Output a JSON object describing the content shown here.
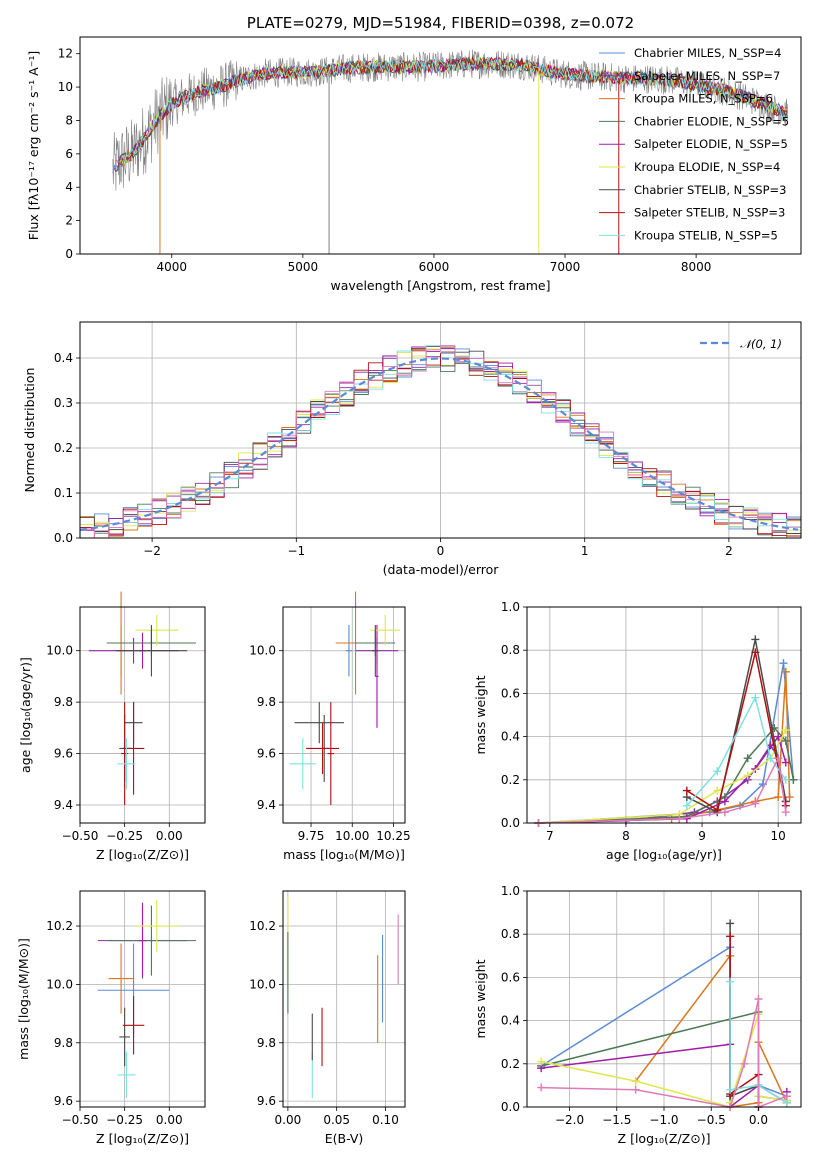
{
  "colors": {
    "chabrier_miles": "#5b8bd6",
    "salpeter_miles": "#8e2ba5",
    "kroupa_miles": "#d9771e",
    "chabrier_elodie": "#4d7a56",
    "salpeter_elodie": "#a11ca8",
    "kroupa_elodie": "#dfe84a",
    "chabrier_stelib": "#4a4a4a",
    "salpeter_stelib": "#b01010",
    "kroupa_stelib": "#7fe0e0",
    "pink": "#e07ab8",
    "data_grey": "#808080",
    "grid": "#b0b0b0"
  },
  "chart_data": [
    {
      "id": "spectrum",
      "type": "line",
      "title": "PLATE=0279, MJD=51984, FIBERID=0398, z=0.072",
      "xlabel": "wavelength [Angstrom, rest frame]",
      "ylabel": "Flux [fλ10⁻¹⁷ erg cm⁻² s⁻¹ A⁻¹]",
      "xlim": [
        3300,
        8800
      ],
      "ylim": [
        0,
        13
      ],
      "xticks": [
        4000,
        5000,
        6000,
        7000,
        8000
      ],
      "yticks": [
        0,
        2,
        4,
        6,
        8,
        10,
        12
      ],
      "grid": false,
      "legend_position": "right",
      "legend": [
        "Chabrier MILES, N_SSP=4",
        "Salpeter MILES, N_SSP=7",
        "Kroupa MILES, N_SSP=6",
        "Chabrier ELODIE, N_SSP=5",
        "Salpeter ELODIE, N_SSP=5",
        "Kroupa ELODIE, N_SSP=4",
        "Chabrier STELIB, N_SSP=3",
        "Salpeter STELIB, N_SSP=3",
        "Kroupa STELIB, N_SSP=5"
      ],
      "continuum": {
        "x": [
          3550,
          3600,
          3700,
          3800,
          3900,
          4000,
          4100,
          4200,
          4300,
          4400,
          4500,
          4700,
          4900,
          5100,
          5300,
          5500,
          5700,
          5900,
          6100,
          6300,
          6500,
          6700,
          6900,
          7100,
          7300,
          7500,
          7700,
          7900,
          8100,
          8300,
          8500,
          8700
        ],
        "y": [
          5.0,
          5.5,
          6.0,
          7.0,
          8.2,
          9.0,
          9.4,
          9.7,
          9.9,
          10.1,
          10.4,
          10.8,
          10.9,
          10.9,
          11.1,
          11.2,
          11.2,
          11.2,
          11.3,
          11.4,
          11.4,
          11.3,
          10.9,
          10.7,
          10.6,
          10.5,
          10.5,
          10.3,
          10.0,
          9.6,
          9.0,
          8.4
        ]
      },
      "drops": [
        {
          "x": 3910,
          "y": 0
        },
        {
          "x": 5200,
          "y": 0
        },
        {
          "x": 6800,
          "y": 0
        },
        {
          "x": 7410,
          "y": 0
        }
      ]
    },
    {
      "id": "residual_hist",
      "type": "histogram",
      "xlabel": "(data-model)/error",
      "ylabel": "Normed distribution",
      "xlim": [
        -2.5,
        2.5
      ],
      "ylim": [
        0,
        0.48
      ],
      "xticks": [
        -2,
        -1,
        0,
        1,
        2
      ],
      "yticks": [
        0.0,
        0.1,
        0.2,
        0.3,
        0.4
      ],
      "grid": true,
      "legend_position": "top-right",
      "legend": [
        "𝒩(0, 1)"
      ],
      "bin_width": 0.1
    },
    {
      "id": "age_vs_Z",
      "type": "errorbar",
      "xlabel": "Z [log₁₀(Z/Z⊙)]",
      "ylabel": "age  [log₁₀(age/yr)]",
      "xlim": [
        -0.5,
        0.2
      ],
      "ylim": [
        9.33,
        10.17
      ],
      "xticks": [
        -0.5,
        -0.25,
        0.0
      ],
      "xtick_labels": [
        "−0.50",
        "−0.25",
        "0.00"
      ],
      "yticks": [
        9.4,
        9.6,
        9.8,
        10.0
      ],
      "grid": true,
      "points": [
        {
          "model": "chabrier_miles",
          "x": -0.27,
          "xerr": 0.02,
          "y": 10.0,
          "yerr": 0.1
        },
        {
          "model": "salpeter_miles",
          "x": -0.2,
          "xerr": 0.25,
          "y": 10.0,
          "yerr": 0.05
        },
        {
          "model": "kroupa_miles",
          "x": -0.27,
          "xerr": 0.07,
          "y": 10.03,
          "yerr": 0.2
        },
        {
          "model": "chabrier_elodie",
          "x": -0.1,
          "xerr": 0.25,
          "y": 10.03,
          "yerr": 0.05
        },
        {
          "model": "salpeter_elodie",
          "x": -0.15,
          "xerr": 0.02,
          "y": 10.0,
          "yerr": 0.07
        },
        {
          "model": "kroupa_elodie",
          "x": -0.07,
          "xerr": 0.12,
          "y": 10.08,
          "yerr": 0.06
        },
        {
          "model": "chabrier_stelib",
          "x": -0.1,
          "xerr": 0.2,
          "y": 10.0,
          "yerr": 0.1
        },
        {
          "model": "chabrier_stelib",
          "x": -0.2,
          "xerr": 0.05,
          "y": 9.72,
          "yerr": 0.08
        },
        {
          "model": "chabrier_stelib",
          "x": -0.25,
          "xerr": 0.03,
          "y": 9.62,
          "yerr": 0.13
        },
        {
          "model": "salpeter_stelib",
          "x": -0.2,
          "xerr": 0.06,
          "y": 9.62,
          "yerr": 0.18
        },
        {
          "model": "salpeter_stelib",
          "x": -0.25,
          "xerr": 0.02,
          "y": 9.6,
          "yerr": 0.2
        },
        {
          "model": "kroupa_stelib",
          "x": -0.24,
          "xerr": 0.05,
          "y": 9.56,
          "yerr": 0.1
        }
      ]
    },
    {
      "id": "age_vs_mass",
      "type": "errorbar",
      "xlabel": "mass [log₁₀(M/M⊙)]",
      "ylabel": "",
      "xlim": [
        9.58,
        10.32
      ],
      "ylim": [
        9.33,
        10.17
      ],
      "xticks": [
        9.75,
        10.0,
        10.25
      ],
      "xtick_labels": [
        "9.75",
        "10.00",
        "10.25"
      ],
      "yticks": [
        9.4,
        9.6,
        9.8,
        10.0
      ],
      "grid": true,
      "points": [
        {
          "model": "chabrier_miles",
          "x": 9.98,
          "xerr": 0.02,
          "y": 10.0,
          "yerr": 0.1
        },
        {
          "model": "salpeter_miles",
          "x": 10.15,
          "xerr": 0.13,
          "y": 10.0,
          "yerr": 0.05
        },
        {
          "model": "kroupa_miles",
          "x": 10.02,
          "xerr": 0.12,
          "y": 10.03,
          "yerr": 0.2
        },
        {
          "model": "chabrier_elodie",
          "x": 10.14,
          "xerr": 0.12,
          "y": 10.03,
          "yerr": 0.05
        },
        {
          "model": "salpeter_elodie",
          "x": 10.15,
          "xerr": 0.01,
          "y": 9.9,
          "yerr": 0.2
        },
        {
          "model": "kroupa_elodie",
          "x": 10.2,
          "xerr": 0.09,
          "y": 10.08,
          "yerr": 0.06
        },
        {
          "model": "chabrier_stelib",
          "x": 10.14,
          "xerr": 0.02,
          "y": 10.0,
          "yerr": 0.1
        },
        {
          "model": "chabrier_stelib",
          "x": 9.8,
          "xerr": 0.15,
          "y": 9.72,
          "yerr": 0.08
        },
        {
          "model": "chabrier_stelib",
          "x": 9.83,
          "xerr": 0.03,
          "y": 9.62,
          "yerr": 0.13
        },
        {
          "model": "salpeter_stelib",
          "x": 9.82,
          "xerr": 0.1,
          "y": 9.62,
          "yerr": 0.1
        },
        {
          "model": "salpeter_stelib",
          "x": 9.87,
          "xerr": 0.02,
          "y": 9.6,
          "yerr": 0.2
        },
        {
          "model": "kroupa_stelib",
          "x": 9.7,
          "xerr": 0.08,
          "y": 9.56,
          "yerr": 0.1
        }
      ]
    },
    {
      "id": "mass_weight_vs_age",
      "type": "line",
      "xlabel": "age  [log₁₀(age/yr)]",
      "ylabel": "mass weight",
      "xlim": [
        6.7,
        10.3
      ],
      "ylim": [
        0,
        1.0
      ],
      "xticks": [
        7,
        8,
        9,
        10
      ],
      "yticks": [
        0.0,
        0.2,
        0.4,
        0.6,
        0.8,
        1.0
      ],
      "grid": true,
      "series": [
        {
          "model": "chabrier_miles",
          "x": [
            6.85,
            9.1,
            9.5,
            9.8,
            10.07,
            10.2
          ],
          "y": [
            0.0,
            0.05,
            0.08,
            0.18,
            0.74,
            0.2
          ]
        },
        {
          "model": "salpeter_miles",
          "x": [
            6.85,
            8.0,
            8.9,
            9.2,
            9.6,
            9.9,
            10.0,
            10.1
          ],
          "y": [
            0.0,
            0.01,
            0.05,
            0.1,
            0.2,
            0.36,
            0.3,
            0.1
          ]
        },
        {
          "model": "kroupa_miles",
          "x": [
            6.85,
            8.6,
            9.2,
            9.7,
            10.0,
            10.1,
            10.15
          ],
          "y": [
            0.0,
            0.02,
            0.06,
            0.1,
            0.12,
            0.7,
            0.12
          ]
        },
        {
          "model": "chabrier_elodie",
          "x": [
            6.85,
            8.8,
            9.3,
            9.6,
            9.95,
            10.1,
            10.2
          ],
          "y": [
            0.0,
            0.03,
            0.12,
            0.3,
            0.44,
            0.38,
            0.2
          ]
        },
        {
          "model": "salpeter_elodie",
          "x": [
            6.85,
            8.8,
            9.3,
            9.7,
            10.0,
            10.1
          ],
          "y": [
            0.0,
            0.02,
            0.1,
            0.25,
            0.4,
            0.28
          ]
        },
        {
          "model": "kroupa_elodie",
          "x": [
            6.85,
            8.7,
            9.2,
            9.6,
            9.9,
            10.1
          ],
          "y": [
            0.0,
            0.04,
            0.15,
            0.22,
            0.3,
            0.43
          ]
        },
        {
          "model": "chabrier_stelib",
          "x": [
            8.8,
            9.2,
            9.7,
            10.1
          ],
          "y": [
            0.12,
            0.05,
            0.85,
            0.1
          ]
        },
        {
          "model": "salpeter_stelib",
          "x": [
            8.8,
            9.2,
            9.7,
            10.1
          ],
          "y": [
            0.15,
            0.06,
            0.79,
            0.08
          ]
        },
        {
          "model": "kroupa_stelib",
          "x": [
            8.8,
            9.2,
            9.7,
            9.9,
            10.1
          ],
          "y": [
            0.08,
            0.24,
            0.58,
            0.3,
            0.2
          ]
        },
        {
          "model": "pink",
          "x": [
            6.85,
            8.7,
            9.3,
            9.7,
            10.0,
            10.1
          ],
          "y": [
            0.0,
            0.02,
            0.05,
            0.09,
            0.3,
            0.05
          ]
        }
      ]
    },
    {
      "id": "mass_vs_Z",
      "type": "errorbar",
      "xlabel": "Z [log₁₀(Z/Z⊙)]",
      "ylabel": "mass [log₁₀(M/M⊙)]",
      "xlim": [
        -0.5,
        0.2
      ],
      "ylim": [
        9.58,
        10.32
      ],
      "xticks": [
        -0.5,
        -0.25,
        0.0
      ],
      "xtick_labels": [
        "−0.50",
        "−0.25",
        "0.00"
      ],
      "yticks": [
        9.6,
        9.8,
        10.0,
        10.2
      ],
      "grid": true,
      "points": [
        {
          "model": "chabrier_miles",
          "x": -0.2,
          "xerr": 0.2,
          "y": 9.98,
          "yerr": 0.16
        },
        {
          "model": "salpeter_miles",
          "x": -0.15,
          "xerr": 0.25,
          "y": 10.15,
          "yerr": 0.13
        },
        {
          "model": "kroupa_miles",
          "x": -0.27,
          "xerr": 0.07,
          "y": 10.02,
          "yerr": 0.12
        },
        {
          "model": "chabrier_elodie",
          "x": -0.1,
          "xerr": 0.25,
          "y": 10.15,
          "yerr": 0.12
        },
        {
          "model": "salpeter_elodie",
          "x": -0.15,
          "xerr": 0.02,
          "y": 10.15,
          "yerr": 0.12
        },
        {
          "model": "kroupa_elodie",
          "x": -0.07,
          "xerr": 0.12,
          "y": 10.2,
          "yerr": 0.09
        },
        {
          "model": "chabrier_stelib",
          "x": -0.25,
          "xerr": 0.03,
          "y": 9.82,
          "yerr": 0.1
        },
        {
          "model": "salpeter_stelib",
          "x": -0.2,
          "xerr": 0.06,
          "y": 9.86,
          "yerr": 0.1
        },
        {
          "model": "kroupa_stelib",
          "x": -0.24,
          "xerr": 0.05,
          "y": 9.69,
          "yerr": 0.08
        }
      ]
    },
    {
      "id": "mass_vs_ebv",
      "type": "errorbar",
      "xlabel": "E(B-V)",
      "ylabel": "",
      "xlim": [
        -0.005,
        0.12
      ],
      "ylim": [
        9.58,
        10.32
      ],
      "xticks": [
        0.0,
        0.05,
        0.1
      ],
      "xtick_labels": [
        "0.00",
        "0.05",
        "0.10"
      ],
      "yticks": [
        9.6,
        9.8,
        10.0,
        10.2
      ],
      "grid": true,
      "points": [
        {
          "model": "kroupa_elodie",
          "x": 0.0,
          "xerr": 0,
          "y": 10.15,
          "yerr": 0.15
        },
        {
          "model": "chabrier_elodie",
          "x": 0.0,
          "xerr": 0,
          "y": 10.04,
          "yerr": 0.14
        },
        {
          "model": "kroupa_stelib",
          "x": 0.025,
          "xerr": 0,
          "y": 9.69,
          "yerr": 0.08
        },
        {
          "model": "chabrier_stelib",
          "x": 0.025,
          "xerr": 0,
          "y": 9.82,
          "yerr": 0.08
        },
        {
          "model": "salpeter_stelib",
          "x": 0.035,
          "xerr": 0,
          "y": 9.82,
          "yerr": 0.1
        },
        {
          "model": "kroupa_miles",
          "x": 0.092,
          "xerr": 0,
          "y": 9.95,
          "yerr": 0.15
        },
        {
          "model": "chabrier_miles",
          "x": 0.097,
          "xerr": 0,
          "y": 10.02,
          "yerr": 0.15
        },
        {
          "model": "pink",
          "x": 0.113,
          "xerr": 0,
          "y": 10.12,
          "yerr": 0.12
        }
      ]
    },
    {
      "id": "mass_weight_vs_Z",
      "type": "line",
      "xlabel": "Z [log₁₀(Z/Z⊙)]",
      "ylabel": "mass weight",
      "xlim": [
        -2.45,
        0.45
      ],
      "ylim": [
        0,
        1.0
      ],
      "xticks": [
        -2.0,
        -1.5,
        -1.0,
        -0.5,
        0.0
      ],
      "xtick_labels": [
        "−2.0",
        "−1.5",
        "−1.0",
        "−0.5",
        "0.0"
      ],
      "yticks": [
        0.0,
        0.2,
        0.4,
        0.6,
        0.8,
        1.0
      ],
      "grid": true,
      "series": [
        {
          "model": "chabrier_miles",
          "x": [
            -2.3,
            -0.3,
            -0.3,
            0.0,
            0.3
          ],
          "y": [
            0.19,
            0.74,
            0.05,
            0.1,
            0.05
          ]
        },
        {
          "model": "kroupa_miles",
          "x": [
            -1.3,
            -0.3,
            -0.3,
            0.0,
            0.0,
            0.3
          ],
          "y": [
            0.12,
            0.7,
            0.0,
            0.02,
            0.3,
            0.02
          ]
        },
        {
          "model": "chabrier_elodie",
          "x": [
            -2.3,
            0.0,
            0.0,
            0.3
          ],
          "y": [
            0.19,
            0.44,
            0.05,
            0.03
          ]
        },
        {
          "model": "salpeter_elodie",
          "x": [
            -2.3,
            -0.3,
            -0.3,
            0.0,
            0.3,
            0.3
          ],
          "y": [
            0.18,
            0.29,
            0.0,
            0.1,
            0.02,
            0.07
          ]
        },
        {
          "model": "kroupa_elodie",
          "x": [
            -2.3,
            -1.3,
            -0.3,
            -0.3,
            0.0,
            0.0,
            0.3
          ],
          "y": [
            0.21,
            0.12,
            0.0,
            0.02,
            0.43,
            0.05,
            0.03
          ]
        },
        {
          "model": "chabrier_stelib",
          "x": [
            -0.3,
            -0.3,
            0.0
          ],
          "y": [
            0.85,
            0.05,
            0.1
          ]
        },
        {
          "model": "salpeter_stelib",
          "x": [
            -0.3,
            -0.3,
            0.0,
            0.0
          ],
          "y": [
            0.79,
            0.06,
            0.15,
            0.0
          ]
        },
        {
          "model": "kroupa_stelib",
          "x": [
            -0.3,
            -0.3,
            0.0,
            0.3
          ],
          "y": [
            0.58,
            0.08,
            0.1,
            0.02
          ]
        },
        {
          "model": "pink",
          "x": [
            -2.3,
            -1.3,
            -0.3,
            -0.15,
            0.0,
            0.0,
            0.3
          ],
          "y": [
            0.09,
            0.08,
            0.0,
            0.2,
            0.5,
            0.0,
            0.05
          ]
        }
      ]
    }
  ]
}
